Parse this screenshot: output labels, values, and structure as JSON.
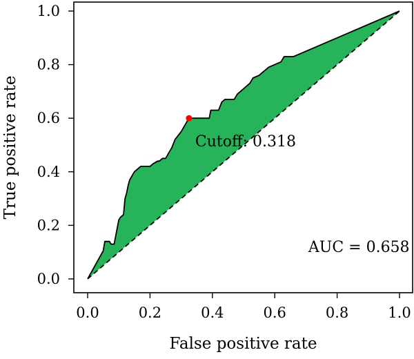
{
  "chart_data": {
    "type": "line",
    "xlabel": "False positive rate",
    "ylabel": "True positive rate",
    "xlim": [
      0.0,
      1.0
    ],
    "ylim": [
      0.0,
      1.0
    ],
    "x_ticks": [
      "0.0",
      "0.2",
      "0.4",
      "0.6",
      "0.8",
      "1.0"
    ],
    "y_ticks": [
      "0.0",
      "0.2",
      "0.4",
      "0.6",
      "0.8",
      "1.0"
    ],
    "grid": false,
    "colors": {
      "fill": "#27b35a",
      "curve": "#000000",
      "diagonal": "#000000",
      "cutoff_point": "#ff0000"
    },
    "roc_curve": [
      [
        0.0,
        0.0
      ],
      [
        0.05,
        0.105
      ],
      [
        0.055,
        0.14
      ],
      [
        0.07,
        0.14
      ],
      [
        0.075,
        0.13
      ],
      [
        0.085,
        0.13
      ],
      [
        0.095,
        0.19
      ],
      [
        0.1,
        0.22
      ],
      [
        0.105,
        0.23
      ],
      [
        0.115,
        0.24
      ],
      [
        0.12,
        0.3
      ],
      [
        0.125,
        0.32
      ],
      [
        0.13,
        0.35
      ],
      [
        0.135,
        0.37
      ],
      [
        0.14,
        0.38
      ],
      [
        0.145,
        0.39
      ],
      [
        0.15,
        0.4
      ],
      [
        0.16,
        0.41
      ],
      [
        0.17,
        0.42
      ],
      [
        0.2,
        0.42
      ],
      [
        0.21,
        0.43
      ],
      [
        0.225,
        0.44
      ],
      [
        0.23,
        0.44
      ],
      [
        0.24,
        0.45
      ],
      [
        0.25,
        0.45
      ],
      [
        0.26,
        0.47
      ],
      [
        0.27,
        0.49
      ],
      [
        0.28,
        0.52
      ],
      [
        0.3,
        0.55
      ],
      [
        0.31,
        0.57
      ],
      [
        0.32,
        0.59
      ],
      [
        0.325,
        0.6
      ],
      [
        0.33,
        0.6
      ],
      [
        0.39,
        0.6
      ],
      [
        0.395,
        0.63
      ],
      [
        0.42,
        0.63
      ],
      [
        0.43,
        0.66
      ],
      [
        0.44,
        0.67
      ],
      [
        0.47,
        0.67
      ],
      [
        0.48,
        0.69
      ],
      [
        0.49,
        0.7
      ],
      [
        0.5,
        0.71
      ],
      [
        0.51,
        0.72
      ],
      [
        0.52,
        0.73
      ],
      [
        0.53,
        0.75
      ],
      [
        0.55,
        0.76
      ],
      [
        0.56,
        0.77
      ],
      [
        0.57,
        0.78
      ],
      [
        0.58,
        0.79
      ],
      [
        0.6,
        0.8
      ],
      [
        0.62,
        0.81
      ],
      [
        0.63,
        0.83
      ],
      [
        0.66,
        0.83
      ],
      [
        0.68,
        0.84
      ],
      [
        0.8,
        0.9
      ],
      [
        1.0,
        1.0
      ]
    ],
    "diagonal": [
      [
        0.0,
        0.0
      ],
      [
        1.0,
        1.0
      ]
    ],
    "cutoff_point": {
      "x": 0.325,
      "y": 0.6,
      "label": "Cutoff: 0.318"
    },
    "auc_label": "AUC = 0.658"
  }
}
